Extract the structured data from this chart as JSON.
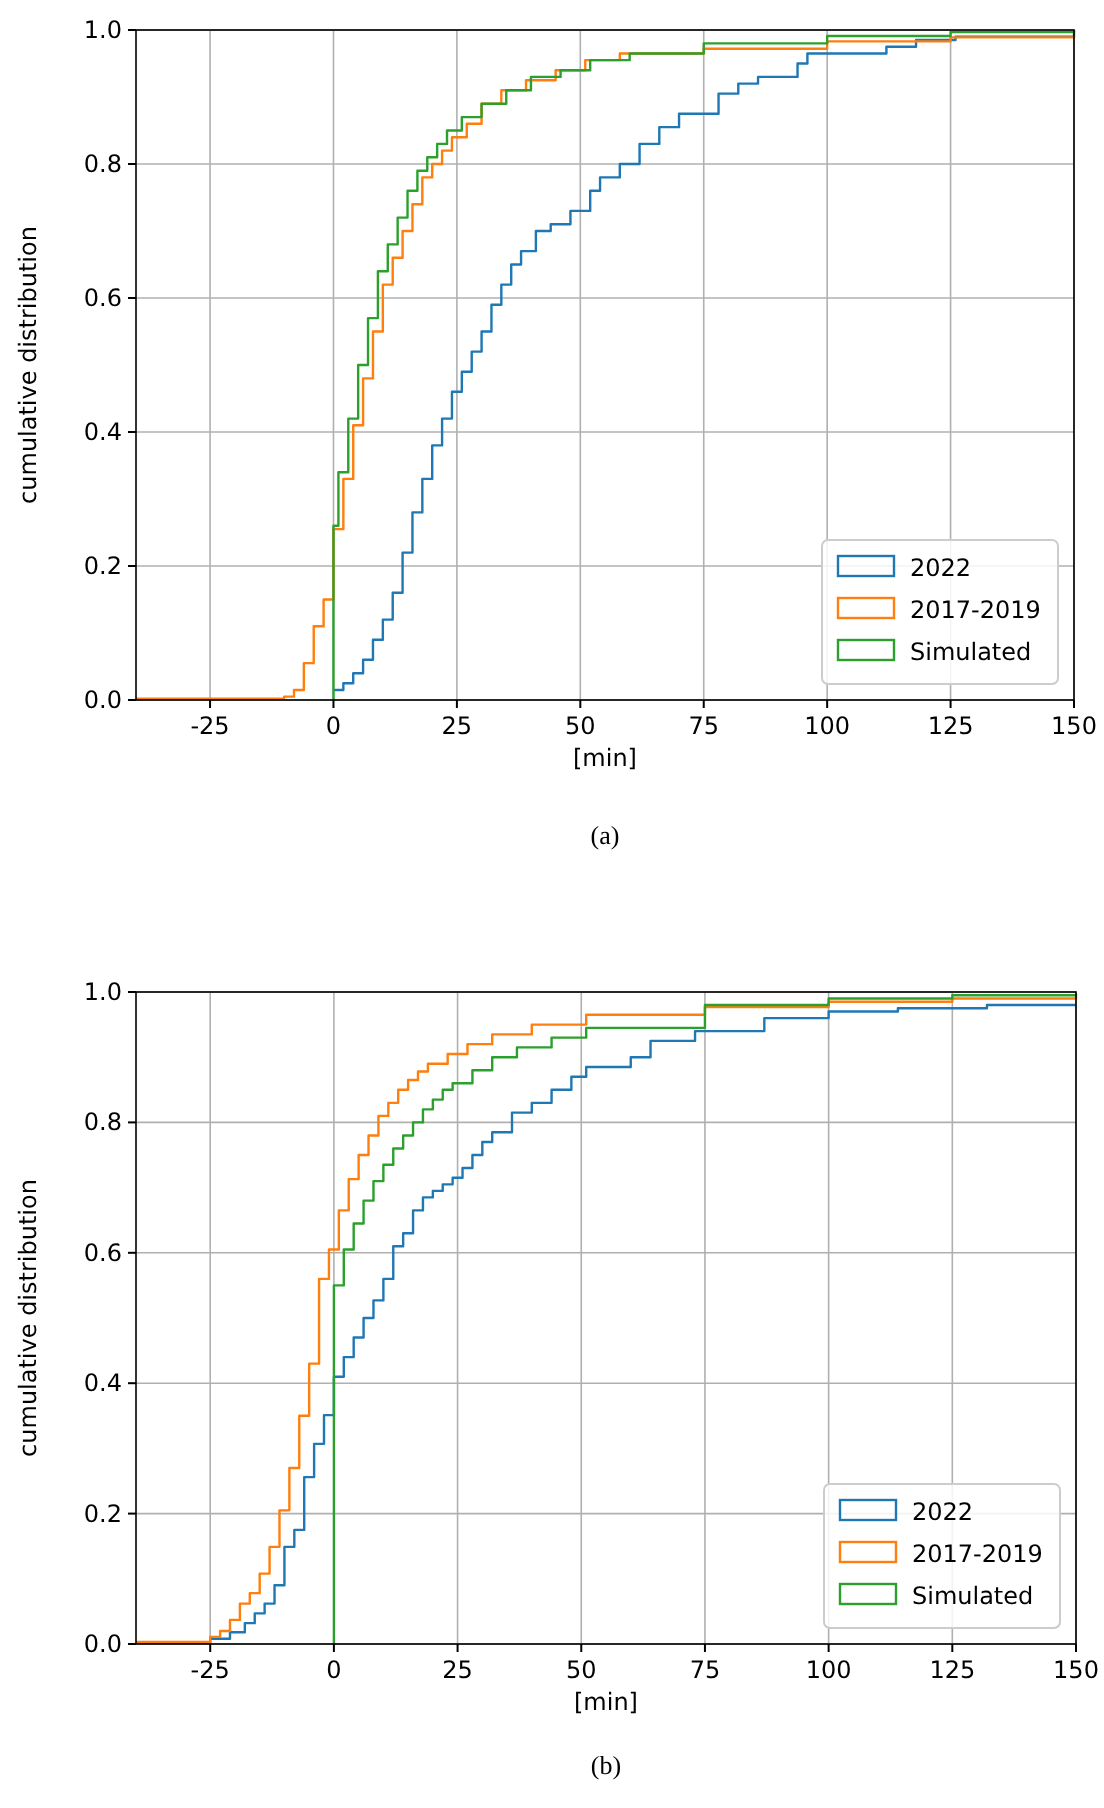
{
  "chart_data": [
    {
      "type": "step",
      "xlabel": "[min]",
      "ylabel": "cumulative distribution",
      "annotations": [
        "(a)"
      ],
      "xlim": [
        -40,
        150
      ],
      "ylim": [
        0,
        1
      ],
      "xticks": [
        -25,
        0,
        25,
        50,
        75,
        100,
        125,
        150
      ],
      "yticks": [
        {
          "value": 0,
          "label": "0.0"
        },
        {
          "value": 0.2,
          "label": "0.2"
        },
        {
          "value": 0.4,
          "label": "0.4"
        },
        {
          "value": 0.6,
          "label": "0.6"
        },
        {
          "value": 0.8,
          "label": "0.8"
        },
        {
          "value": 1,
          "label": "1.0"
        }
      ],
      "grid": true,
      "legend": "lower right",
      "series": [
        {
          "name": "2022",
          "color": "#1f77b4",
          "x": [
            0,
            2,
            4,
            6,
            8,
            10,
            12,
            14,
            16,
            18,
            20,
            22,
            24,
            26,
            28,
            30,
            32,
            34,
            36,
            38,
            41,
            44,
            48,
            52,
            54,
            58,
            62,
            66,
            70,
            78,
            82,
            86,
            94,
            96,
            112,
            118,
            126,
            150
          ],
          "values": [
            0.015,
            0.025,
            0.04,
            0.06,
            0.09,
            0.12,
            0.16,
            0.22,
            0.28,
            0.33,
            0.38,
            0.42,
            0.46,
            0.49,
            0.52,
            0.55,
            0.59,
            0.62,
            0.65,
            0.67,
            0.7,
            0.71,
            0.73,
            0.76,
            0.78,
            0.8,
            0.83,
            0.855,
            0.875,
            0.905,
            0.92,
            0.93,
            0.95,
            0.965,
            0.975,
            0.985,
            0.99,
            0.998
          ]
        },
        {
          "name": "2017-2019",
          "color": "#ff7f0e",
          "x": [
            -40,
            -10,
            -8,
            -6,
            -4,
            -2,
            0,
            2,
            4,
            6,
            8,
            10,
            12,
            14,
            16,
            18,
            20,
            22,
            24,
            27,
            30,
            34,
            39,
            45,
            51,
            58,
            75,
            100,
            125,
            150
          ],
          "values": [
            0.002,
            0.005,
            0.015,
            0.055,
            0.11,
            0.15,
            0.255,
            0.33,
            0.41,
            0.48,
            0.55,
            0.62,
            0.66,
            0.7,
            0.74,
            0.78,
            0.8,
            0.82,
            0.84,
            0.86,
            0.89,
            0.91,
            0.925,
            0.94,
            0.955,
            0.965,
            0.972,
            0.983,
            0.989,
            0.992
          ]
        },
        {
          "name": "Simulated",
          "color": "#2ca02c",
          "x": [
            0,
            0,
            1,
            3,
            5,
            7,
            9,
            11,
            13,
            15,
            17,
            19,
            21,
            23,
            26,
            30,
            35,
            40,
            46,
            52,
            60,
            75,
            100,
            125,
            150
          ],
          "values": [
            0,
            0.26,
            0.34,
            0.42,
            0.5,
            0.57,
            0.64,
            0.68,
            0.72,
            0.76,
            0.79,
            0.81,
            0.83,
            0.85,
            0.87,
            0.89,
            0.91,
            0.93,
            0.94,
            0.955,
            0.965,
            0.98,
            0.991,
            0.997,
            1
          ]
        }
      ]
    },
    {
      "type": "step",
      "xlabel": "[min]",
      "ylabel": "cumulative distribution",
      "annotations": [
        "(b)"
      ],
      "xlim": [
        -40,
        150
      ],
      "ylim": [
        0,
        1
      ],
      "xticks": [
        -25,
        0,
        25,
        50,
        75,
        100,
        125,
        150
      ],
      "yticks": [
        {
          "value": 0,
          "label": "0.0"
        },
        {
          "value": 0.2,
          "label": "0.2"
        },
        {
          "value": 0.4,
          "label": "0.4"
        },
        {
          "value": 0.6,
          "label": "0.6"
        },
        {
          "value": 0.8,
          "label": "0.8"
        },
        {
          "value": 1,
          "label": "1.0"
        }
      ],
      "grid": true,
      "legend": "lower right",
      "series": [
        {
          "name": "2022",
          "color": "#1f77b4",
          "x": [
            -40,
            -25,
            -21,
            -18,
            -16,
            -14,
            -12,
            -10,
            -8,
            -6,
            -4,
            -2,
            0,
            2,
            4,
            6,
            8,
            10,
            12,
            14,
            16,
            18,
            20,
            22,
            24,
            26,
            28,
            30,
            32,
            36,
            40,
            44,
            48,
            51,
            60,
            64,
            73,
            87,
            100,
            114,
            132,
            150
          ],
          "values": [
            0.002,
            0.008,
            0.018,
            0.032,
            0.047,
            0.062,
            0.09,
            0.149,
            0.175,
            0.256,
            0.307,
            0.351,
            0.41,
            0.44,
            0.47,
            0.5,
            0.527,
            0.56,
            0.61,
            0.63,
            0.665,
            0.685,
            0.695,
            0.705,
            0.715,
            0.73,
            0.75,
            0.77,
            0.785,
            0.815,
            0.83,
            0.85,
            0.87,
            0.885,
            0.9,
            0.925,
            0.94,
            0.96,
            0.97,
            0.975,
            0.98,
            0.98
          ]
        },
        {
          "name": "2017-2019",
          "color": "#ff7f0e",
          "x": [
            -40,
            -25,
            -23,
            -21,
            -19,
            -17,
            -15,
            -13,
            -11,
            -9,
            -7,
            -5,
            -3,
            -1,
            1,
            3,
            5,
            7,
            9,
            11,
            13,
            15,
            17,
            19,
            23,
            27,
            32,
            40,
            51,
            75,
            100,
            125,
            150
          ],
          "values": [
            0.003,
            0.011,
            0.02,
            0.037,
            0.062,
            0.078,
            0.108,
            0.149,
            0.205,
            0.27,
            0.35,
            0.43,
            0.56,
            0.605,
            0.665,
            0.713,
            0.75,
            0.78,
            0.81,
            0.83,
            0.85,
            0.865,
            0.878,
            0.89,
            0.905,
            0.92,
            0.935,
            0.95,
            0.965,
            0.977,
            0.985,
            0.99,
            0.995
          ]
        },
        {
          "name": "Simulated",
          "color": "#2ca02c",
          "x": [
            0,
            0,
            2,
            4,
            6,
            8,
            10,
            12,
            14,
            16,
            18,
            20,
            22,
            24,
            28,
            32,
            37,
            44,
            51,
            75,
            100,
            125,
            150
          ],
          "values": [
            0,
            0.55,
            0.605,
            0.645,
            0.68,
            0.71,
            0.735,
            0.76,
            0.78,
            0.8,
            0.82,
            0.835,
            0.85,
            0.86,
            0.88,
            0.9,
            0.915,
            0.93,
            0.945,
            0.98,
            0.99,
            0.995,
            0.997
          ]
        }
      ]
    }
  ]
}
